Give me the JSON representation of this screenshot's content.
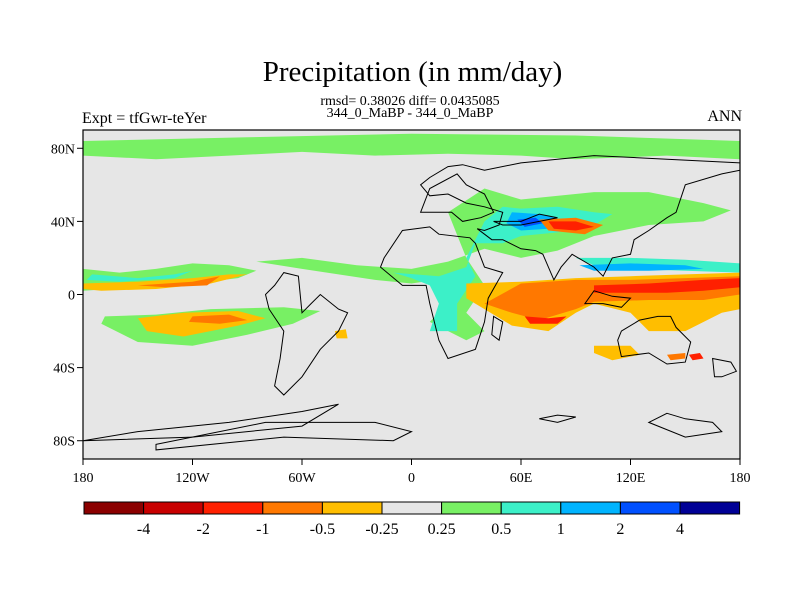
{
  "title": "Precipitation (in mm/day)",
  "stats_line": "rmsd= 0.38026 diff= 0.0435085",
  "case_line": "344_0_MaBP - 344_0_MaBP",
  "left_label": "Expt = tfGwr-teYer",
  "right_label": "ANN",
  "axes": {
    "x_ticks": [
      {
        "value": -180,
        "label": "180"
      },
      {
        "value": -120,
        "label": "120W"
      },
      {
        "value": -60,
        "label": "60W"
      },
      {
        "value": 0,
        "label": "0"
      },
      {
        "value": 60,
        "label": "60E"
      },
      {
        "value": 120,
        "label": "120E"
      },
      {
        "value": 180,
        "label": "180"
      }
    ],
    "y_ticks": [
      {
        "value": 80,
        "label": "80N"
      },
      {
        "value": 40,
        "label": "40N"
      },
      {
        "value": 0,
        "label": "0"
      },
      {
        "value": -40,
        "label": "40S"
      },
      {
        "value": -80,
        "label": "80S"
      }
    ],
    "lon_range": [
      -180,
      180
    ],
    "lat_range": [
      -90,
      90
    ]
  },
  "colorbar": {
    "colors": [
      "#8b0000",
      "#c80000",
      "#ff2000",
      "#ff7800",
      "#ffbe00",
      "#e6e6e6",
      "#78f064",
      "#3cf0c8",
      "#00b4ff",
      "#0050ff",
      "#000096"
    ],
    "labels": [
      "-4",
      "-2",
      "-1",
      "-0.5",
      "-0.25",
      "0.25",
      "0.5",
      "1",
      "2",
      "4"
    ]
  },
  "background_color": "#e6e6e6",
  "features": [
    {
      "color": "#78f064",
      "points": [
        [
          -180,
          84
        ],
        [
          -90,
          86
        ],
        [
          0,
          88
        ],
        [
          90,
          87
        ],
        [
          180,
          84
        ],
        [
          180,
          74
        ],
        [
          140,
          76
        ],
        [
          90,
          74
        ],
        [
          60,
          76
        ],
        [
          20,
          77
        ],
        [
          -20,
          76
        ],
        [
          -60,
          78
        ],
        [
          -100,
          76
        ],
        [
          -140,
          74
        ],
        [
          -180,
          76
        ]
      ]
    },
    {
      "color": "#78f064",
      "points": [
        [
          -180,
          14
        ],
        [
          -160,
          12
        ],
        [
          -140,
          14
        ],
        [
          -120,
          17
        ],
        [
          -100,
          16
        ],
        [
          -85,
          13
        ],
        [
          -95,
          9
        ],
        [
          -120,
          6
        ],
        [
          -150,
          4
        ],
        [
          -180,
          2
        ]
      ]
    },
    {
      "color": "#3cf0c8",
      "points": [
        [
          -175,
          11
        ],
        [
          -150,
          9
        ],
        [
          -130,
          11
        ],
        [
          -120,
          13
        ],
        [
          -130,
          9
        ],
        [
          -160,
          7
        ],
        [
          -178,
          8
        ]
      ]
    },
    {
      "color": "#ffbe00",
      "points": [
        [
          -180,
          6
        ],
        [
          -150,
          7
        ],
        [
          -120,
          9
        ],
        [
          -100,
          11
        ],
        [
          -90,
          11
        ],
        [
          -110,
          6
        ],
        [
          -140,
          3
        ],
        [
          -170,
          2
        ],
        [
          -180,
          3
        ]
      ]
    },
    {
      "color": "#ff7800",
      "points": [
        [
          -150,
          5
        ],
        [
          -120,
          7
        ],
        [
          -105,
          10
        ],
        [
          -112,
          5
        ],
        [
          -135,
          4
        ]
      ]
    },
    {
      "color": "#78f064",
      "points": [
        [
          -168,
          -12
        ],
        [
          -140,
          -11
        ],
        [
          -110,
          -8
        ],
        [
          -70,
          -7
        ],
        [
          -50,
          -9
        ],
        [
          -65,
          -16
        ],
        [
          -90,
          -22
        ],
        [
          -120,
          -28
        ],
        [
          -150,
          -26
        ],
        [
          -170,
          -16
        ]
      ]
    },
    {
      "color": "#ffbe00",
      "points": [
        [
          -150,
          -13
        ],
        [
          -125,
          -10
        ],
        [
          -95,
          -9
        ],
        [
          -80,
          -13
        ],
        [
          -95,
          -17
        ],
        [
          -125,
          -23
        ],
        [
          -145,
          -20
        ]
      ]
    },
    {
      "color": "#ff7800",
      "points": [
        [
          -120,
          -12
        ],
        [
          -100,
          -11
        ],
        [
          -90,
          -14
        ],
        [
          -105,
          -16
        ],
        [
          -122,
          -15
        ]
      ]
    },
    {
      "color": "#78f064",
      "points": [
        [
          -85,
          18
        ],
        [
          -60,
          14
        ],
        [
          -40,
          11
        ],
        [
          -20,
          8
        ],
        [
          0,
          6
        ],
        [
          20,
          9
        ],
        [
          20,
          -5
        ],
        [
          10,
          -15
        ],
        [
          30,
          -25
        ],
        [
          40,
          -20
        ],
        [
          30,
          -10
        ],
        [
          40,
          5
        ],
        [
          30,
          20
        ],
        [
          20,
          45
        ],
        [
          40,
          58
        ],
        [
          60,
          52
        ],
        [
          100,
          56
        ],
        [
          130,
          56
        ],
        [
          160,
          50
        ],
        [
          175,
          46
        ],
        [
          160,
          40
        ],
        [
          130,
          38
        ],
        [
          100,
          32
        ],
        [
          80,
          24
        ],
        [
          60,
          20
        ],
        [
          40,
          25
        ],
        [
          20,
          18
        ],
        [
          0,
          14
        ],
        [
          -30,
          16
        ],
        [
          -60,
          20
        ]
      ]
    },
    {
      "color": "#3cf0c8",
      "points": [
        [
          -10,
          12
        ],
        [
          0,
          9
        ],
        [
          10,
          5
        ],
        [
          15,
          -5
        ],
        [
          10,
          -20
        ],
        [
          25,
          -20
        ],
        [
          25,
          -5
        ],
        [
          35,
          10
        ],
        [
          30,
          20
        ],
        [
          40,
          40
        ],
        [
          50,
          48
        ],
        [
          60,
          47
        ],
        [
          80,
          48
        ],
        [
          100,
          45
        ],
        [
          110,
          44
        ],
        [
          100,
          38
        ],
        [
          80,
          34
        ],
        [
          60,
          32
        ],
        [
          50,
          28
        ],
        [
          35,
          28
        ],
        [
          30,
          15
        ],
        [
          15,
          10
        ]
      ]
    },
    {
      "color": "#00b4ff",
      "points": [
        [
          55,
          45
        ],
        [
          70,
          44
        ],
        [
          80,
          42
        ],
        [
          75,
          36
        ],
        [
          60,
          35
        ],
        [
          52,
          39
        ]
      ]
    },
    {
      "color": "#0050ff",
      "points": [
        [
          58,
          41
        ],
        [
          68,
          42
        ],
        [
          72,
          39
        ],
        [
          62,
          37
        ]
      ]
    },
    {
      "color": "#3cf0c8",
      "points": [
        [
          90,
          20
        ],
        [
          120,
          20
        ],
        [
          150,
          19
        ],
        [
          180,
          17
        ],
        [
          180,
          12
        ],
        [
          150,
          13
        ],
        [
          120,
          14
        ],
        [
          100,
          16
        ]
      ]
    },
    {
      "color": "#00b4ff",
      "points": [
        [
          92,
          16
        ],
        [
          120,
          17
        ],
        [
          150,
          16
        ],
        [
          160,
          14
        ],
        [
          130,
          13
        ],
        [
          100,
          13
        ]
      ]
    },
    {
      "color": "#ffbe00",
      "points": [
        [
          30,
          6
        ],
        [
          60,
          7
        ],
        [
          90,
          9
        ],
        [
          120,
          10
        ],
        [
          150,
          11
        ],
        [
          180,
          12
        ],
        [
          180,
          -8
        ],
        [
          170,
          -10
        ],
        [
          150,
          -20
        ],
        [
          130,
          -20
        ],
        [
          120,
          -10
        ],
        [
          100,
          -5
        ],
        [
          90,
          -10
        ],
        [
          75,
          -20
        ],
        [
          55,
          -17
        ],
        [
          40,
          -8
        ],
        [
          30,
          -2
        ]
      ]
    },
    {
      "color": "#ff7800",
      "points": [
        [
          60,
          6
        ],
        [
          90,
          8
        ],
        [
          120,
          8
        ],
        [
          150,
          9
        ],
        [
          180,
          10
        ],
        [
          180,
          0
        ],
        [
          160,
          -3
        ],
        [
          130,
          -3
        ],
        [
          100,
          -4
        ],
        [
          90,
          -8
        ],
        [
          70,
          -14
        ],
        [
          55,
          -10
        ],
        [
          40,
          -5
        ]
      ]
    },
    {
      "color": "#ff2000",
      "points": [
        [
          100,
          5
        ],
        [
          130,
          6
        ],
        [
          160,
          8
        ],
        [
          180,
          9
        ],
        [
          180,
          4
        ],
        [
          160,
          2
        ],
        [
          140,
          1
        ],
        [
          120,
          1
        ],
        [
          100,
          1
        ]
      ]
    },
    {
      "color": "#ff2000",
      "points": [
        [
          62,
          -12
        ],
        [
          75,
          -13
        ],
        [
          85,
          -12
        ],
        [
          80,
          -16
        ],
        [
          65,
          -16
        ]
      ]
    },
    {
      "color": "#ff7800",
      "points": [
        [
          70,
          41
        ],
        [
          90,
          42
        ],
        [
          105,
          38
        ],
        [
          95,
          33
        ],
        [
          75,
          35
        ]
      ]
    },
    {
      "color": "#ff2000",
      "points": [
        [
          75,
          40
        ],
        [
          90,
          40
        ],
        [
          100,
          37
        ],
        [
          90,
          35
        ],
        [
          78,
          36
        ]
      ]
    },
    {
      "color": "#ffbe00",
      "points": [
        [
          100,
          -28
        ],
        [
          120,
          -28
        ],
        [
          125,
          -33
        ],
        [
          110,
          -36
        ],
        [
          100,
          -32
        ]
      ]
    },
    {
      "color": "#ff7800",
      "points": [
        [
          140,
          -33
        ],
        [
          150,
          -32
        ],
        [
          150,
          -35
        ],
        [
          142,
          -36
        ]
      ]
    },
    {
      "color": "#ff2000",
      "points": [
        [
          152,
          -33
        ],
        [
          158,
          -32
        ],
        [
          160,
          -35
        ],
        [
          154,
          -36
        ]
      ]
    },
    {
      "color": "#ffbe00",
      "points": [
        [
          -42,
          -20
        ],
        [
          -36,
          -19
        ],
        [
          -35,
          -24
        ],
        [
          -41,
          -24
        ]
      ]
    }
  ],
  "coastlines": [
    [
      [
        -60,
        -10
      ],
      [
        -55,
        -5
      ],
      [
        -50,
        0
      ],
      [
        -40,
        -8
      ],
      [
        -35,
        -10
      ],
      [
        -40,
        -20
      ],
      [
        -50,
        -30
      ],
      [
        -60,
        -45
      ],
      [
        -70,
        -55
      ],
      [
        -75,
        -50
      ],
      [
        -72,
        -35
      ],
      [
        -70,
        -20
      ],
      [
        -78,
        -8
      ],
      [
        -80,
        0
      ],
      [
        -75,
        5
      ],
      [
        -70,
        12
      ],
      [
        -62,
        10
      ]
    ],
    [
      [
        -180,
        -80
      ],
      [
        -120,
        -78
      ],
      [
        -60,
        -72
      ],
      [
        -40,
        -60
      ],
      [
        -60,
        -64
      ],
      [
        -100,
        -70
      ],
      [
        -150,
        -75
      ]
    ],
    [
      [
        -140,
        -82
      ],
      [
        -80,
        -70
      ],
      [
        -20,
        -70
      ],
      [
        0,
        -75
      ],
      [
        -10,
        -80
      ],
      [
        -70,
        -78
      ],
      [
        -140,
        -85
      ]
    ],
    [
      [
        -15,
        20
      ],
      [
        -5,
        35
      ],
      [
        10,
        37
      ],
      [
        15,
        33
      ],
      [
        32,
        31
      ],
      [
        35,
        28
      ],
      [
        40,
        15
      ],
      [
        50,
        12
      ],
      [
        42,
        -2
      ],
      [
        40,
        -15
      ],
      [
        35,
        -30
      ],
      [
        20,
        -35
      ],
      [
        15,
        -25
      ],
      [
        10,
        -5
      ],
      [
        8,
        5
      ],
      [
        -5,
        5
      ],
      [
        -17,
        15
      ]
    ],
    [
      [
        5,
        45
      ],
      [
        10,
        58
      ],
      [
        25,
        66
      ],
      [
        30,
        60
      ],
      [
        40,
        55
      ],
      [
        45,
        45
      ],
      [
        38,
        42
      ],
      [
        28,
        40
      ],
      [
        22,
        45
      ],
      [
        15,
        45
      ]
    ],
    [
      [
        45,
        40
      ],
      [
        60,
        40
      ],
      [
        70,
        44
      ],
      [
        80,
        42
      ],
      [
        60,
        38
      ],
      [
        50,
        38
      ]
    ],
    [
      [
        50,
        30
      ],
      [
        60,
        25
      ],
      [
        68,
        24
      ],
      [
        72,
        22
      ],
      [
        78,
        8
      ],
      [
        82,
        15
      ],
      [
        88,
        22
      ],
      [
        100,
        15
      ],
      [
        105,
        10
      ],
      [
        110,
        20
      ],
      [
        120,
        22
      ],
      [
        122,
        30
      ],
      [
        130,
        35
      ],
      [
        140,
        42
      ],
      [
        145,
        45
      ],
      [
        150,
        60
      ],
      [
        170,
        66
      ],
      [
        180,
        68
      ],
      [
        180,
        72
      ],
      [
        140,
        74
      ],
      [
        100,
        76
      ],
      [
        60,
        72
      ],
      [
        40,
        68
      ],
      [
        28,
        71
      ],
      [
        20,
        70
      ],
      [
        10,
        64
      ],
      [
        5,
        60
      ],
      [
        10,
        54
      ],
      [
        20,
        55
      ],
      [
        30,
        50
      ],
      [
        40,
        48
      ],
      [
        50,
        45
      ],
      [
        48,
        38
      ],
      [
        40,
        35
      ],
      [
        36,
        36
      ],
      [
        44,
        30
      ]
    ],
    [
      [
        45,
        -12
      ],
      [
        50,
        -15
      ],
      [
        48,
        -25
      ],
      [
        44,
        -22
      ]
    ],
    [
      [
        95,
        -5
      ],
      [
        105,
        -5
      ],
      [
        115,
        -7
      ],
      [
        120,
        -2
      ],
      [
        110,
        -1
      ],
      [
        100,
        2
      ]
    ],
    [
      [
        115,
        -20
      ],
      [
        125,
        -14
      ],
      [
        135,
        -12
      ],
      [
        142,
        -12
      ],
      [
        145,
        -18
      ],
      [
        153,
        -26
      ],
      [
        150,
        -37
      ],
      [
        140,
        -38
      ],
      [
        130,
        -32
      ],
      [
        115,
        -34
      ],
      [
        113,
        -25
      ]
    ],
    [
      [
        165,
        -35
      ],
      [
        175,
        -37
      ],
      [
        178,
        -42
      ],
      [
        170,
        -45
      ],
      [
        166,
        -45
      ]
    ],
    [
      [
        140,
        -65
      ],
      [
        150,
        -68
      ],
      [
        165,
        -70
      ],
      [
        170,
        -75
      ],
      [
        150,
        -78
      ],
      [
        130,
        -70
      ]
    ],
    [
      [
        70,
        -68
      ],
      [
        80,
        -70
      ],
      [
        90,
        -67
      ],
      [
        80,
        -66
      ]
    ]
  ]
}
